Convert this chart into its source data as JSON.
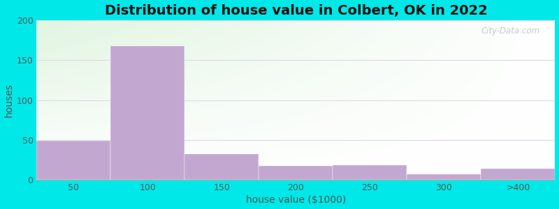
{
  "title": "Distribution of house value in Colbert, OK in 2022",
  "xlabel": "house value ($1000)",
  "ylabel": "houses",
  "bar_labels": [
    "50",
    "100",
    "150",
    "200",
    "250",
    "300",
    ">400"
  ],
  "bar_heights": [
    49,
    168,
    33,
    18,
    19,
    7,
    14
  ],
  "bar_color": "#c2a8d0",
  "bar_edgecolor": "#c2a8d0",
  "ylim": [
    0,
    200
  ],
  "yticks": [
    0,
    50,
    100,
    150,
    200
  ],
  "background_outer": "#00e8e8",
  "grid_color": "#e0ead0",
  "title_fontsize": 14,
  "axis_label_fontsize": 10,
  "tick_fontsize": 9,
  "watermark": "City-Data.com"
}
